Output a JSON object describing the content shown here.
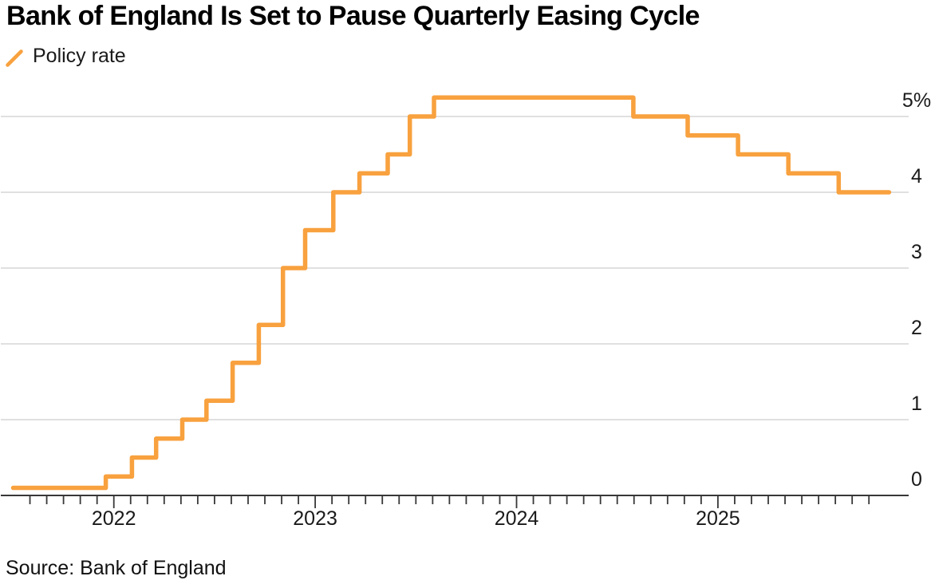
{
  "header": {
    "title": "Bank of England Is Set to Pause Quarterly Easing Cycle"
  },
  "legend": {
    "label": "Policy rate",
    "color": "#F8A13E"
  },
  "footer": {
    "source": "Source: Bank of England"
  },
  "colors": {
    "line": "#F8A13E",
    "grid": "#d5d5d5",
    "axis": "#383838",
    "text": "#1a1a1a"
  },
  "chart_data": {
    "type": "line",
    "step": true,
    "title": "Bank of England Is Set to Pause Quarterly Easing Cycle",
    "unit": "%",
    "legend_position": "top-left",
    "series": [
      {
        "name": "Policy rate",
        "color": "#F8A13E",
        "points": [
          {
            "x": 2021.5,
            "y": 0.1
          },
          {
            "x": 2021.96,
            "y": 0.25
          },
          {
            "x": 2022.09,
            "y": 0.5
          },
          {
            "x": 2022.21,
            "y": 0.75
          },
          {
            "x": 2022.34,
            "y": 1.0
          },
          {
            "x": 2022.46,
            "y": 1.25
          },
          {
            "x": 2022.59,
            "y": 1.75
          },
          {
            "x": 2022.72,
            "y": 2.25
          },
          {
            "x": 2022.84,
            "y": 3.0
          },
          {
            "x": 2022.95,
            "y": 3.5
          },
          {
            "x": 2023.09,
            "y": 4.0
          },
          {
            "x": 2023.22,
            "y": 4.25
          },
          {
            "x": 2023.36,
            "y": 4.5
          },
          {
            "x": 2023.47,
            "y": 5.0
          },
          {
            "x": 2023.59,
            "y": 5.25
          },
          {
            "x": 2024.58,
            "y": 5.0
          },
          {
            "x": 2024.85,
            "y": 4.75
          },
          {
            "x": 2025.1,
            "y": 4.5
          },
          {
            "x": 2025.35,
            "y": 4.25
          },
          {
            "x": 2025.6,
            "y": 4.0
          }
        ],
        "end_x": 2025.85
      }
    ],
    "x_axis": {
      "ticks": [
        {
          "value": 2022,
          "label": "2022"
        },
        {
          "value": 2023,
          "label": "2023"
        },
        {
          "value": 2024,
          "label": "2024"
        },
        {
          "value": 2025,
          "label": "2025"
        }
      ],
      "minor_ticks": "monthly",
      "minor_tick_start_month": -5,
      "minor_tick_end_month": 45,
      "xlim": [
        2021.44,
        2025.95
      ]
    },
    "y_axis": {
      "position": "right",
      "grid": true,
      "ylim": [
        0,
        5.5
      ],
      "ticks": [
        {
          "value": 0,
          "label": "0"
        },
        {
          "value": 1,
          "label": "1"
        },
        {
          "value": 2,
          "label": "2"
        },
        {
          "value": 3,
          "label": "3"
        },
        {
          "value": 4,
          "label": "4"
        },
        {
          "value": 5,
          "label": "5%"
        }
      ]
    }
  }
}
